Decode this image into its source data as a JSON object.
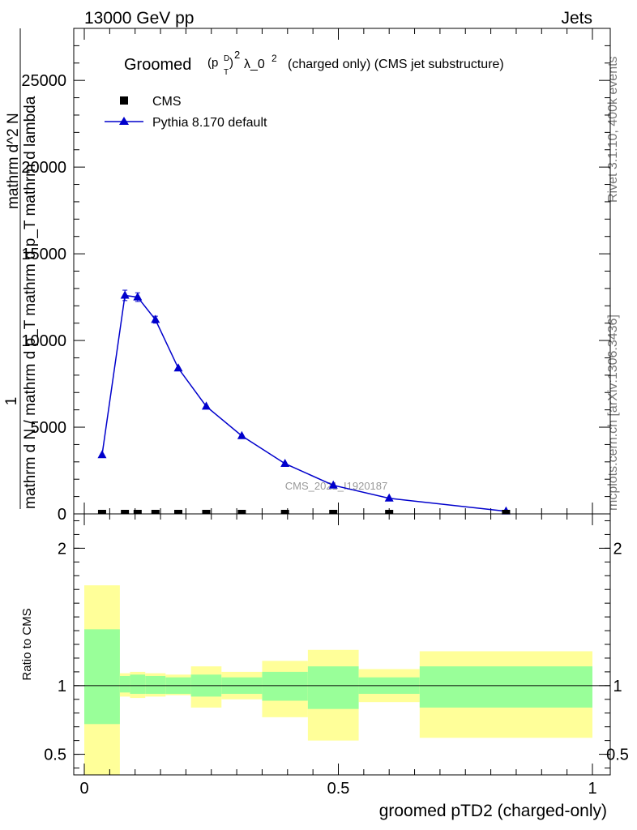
{
  "header": {
    "energy": "13000 GeV pp",
    "category": "Jets",
    "side_top": "Rivet 3.1.10,  400k events",
    "side_bottom": "mcplots.cern.ch [arXiv:1306.3436]",
    "watermark": "CMS_2021_I1920187"
  },
  "chart_data": [
    {
      "type": "line",
      "title_main": "Groomed",
      "title_pt": "(p",
      "title_pt_sub": "T",
      "title_pt_sup": "D",
      "title_pt_close": ")",
      "title_sq": "2",
      "title_lambda": "λ_0",
      "title_lambda_sup": "2",
      "title_suffix": "(charged only) (CMS jet substructure)",
      "ylabel_frac_num": "1",
      "ylabel_den": "mathrm d N / mathrm d p_T mathrm d p_T mathrm d lambda",
      "ylabel_num2": "mathrm d^2 N",
      "ylim": [
        0,
        28000
      ],
      "yticks": [
        {
          "value": 0,
          "label": "0"
        },
        {
          "value": 5000,
          "label": "5000"
        },
        {
          "value": 10000,
          "label": "10000"
        },
        {
          "value": 15000,
          "label": "15000"
        },
        {
          "value": 20000,
          "label": "20000"
        },
        {
          "value": 25000,
          "label": "25000"
        }
      ],
      "xlim": [
        0,
        1
      ],
      "legend": [
        {
          "name": "CMS",
          "marker": "square",
          "color": "#000000"
        },
        {
          "name": "Pythia 8.170 default",
          "marker": "triangle",
          "color": "#0000cc"
        }
      ],
      "series": [
        {
          "name": "Pythia 8.170 default",
          "x": [
            0.035,
            0.08,
            0.105,
            0.14,
            0.185,
            0.24,
            0.31,
            0.395,
            0.49,
            0.6,
            0.83
          ],
          "values": [
            3400,
            12600,
            12500,
            11200,
            8400,
            6200,
            4500,
            2900,
            1650,
            900,
            150
          ],
          "errors": [
            0,
            300,
            250,
            200,
            0,
            0,
            0,
            0,
            0,
            0,
            0
          ]
        },
        {
          "name": "CMS",
          "x": [
            0.035,
            0.08,
            0.105,
            0.14,
            0.185,
            0.24,
            0.31,
            0.395,
            0.49,
            0.6,
            0.83
          ],
          "values": [
            0,
            0,
            0,
            0,
            0,
            0,
            0,
            0,
            0,
            0,
            0
          ]
        }
      ]
    },
    {
      "type": "area",
      "ylabel": "Ratio to CMS",
      "xlabel": "groomed pTD2 (charged-only)",
      "ylim": [
        0.35,
        2.25
      ],
      "reference": 1.0,
      "yticks": [
        {
          "value": 0.5,
          "label": "0.5"
        },
        {
          "value": 1,
          "label": "1"
        },
        {
          "value": 2,
          "label": "2"
        }
      ],
      "xticks": [
        {
          "value": 0,
          "label": "0"
        },
        {
          "value": 0.5,
          "label": "0.5"
        },
        {
          "value": 1,
          "label": "1"
        }
      ],
      "bins": [
        {
          "lo": 0.0,
          "hi": 0.07,
          "green": [
            0.72,
            1.41
          ],
          "yellow": [
            0.35,
            1.73
          ]
        },
        {
          "lo": 0.07,
          "hi": 0.09,
          "green": [
            0.95,
            1.07
          ],
          "yellow": [
            0.92,
            1.09
          ]
        },
        {
          "lo": 0.09,
          "hi": 0.12,
          "green": [
            0.94,
            1.08
          ],
          "yellow": [
            0.91,
            1.1
          ]
        },
        {
          "lo": 0.12,
          "hi": 0.16,
          "green": [
            0.94,
            1.07
          ],
          "yellow": [
            0.92,
            1.09
          ]
        },
        {
          "lo": 0.16,
          "hi": 0.21,
          "green": [
            0.94,
            1.06
          ],
          "yellow": [
            0.93,
            1.08
          ]
        },
        {
          "lo": 0.21,
          "hi": 0.27,
          "green": [
            0.92,
            1.08
          ],
          "yellow": [
            0.84,
            1.14
          ]
        },
        {
          "lo": 0.27,
          "hi": 0.35,
          "green": [
            0.94,
            1.06
          ],
          "yellow": [
            0.9,
            1.1
          ]
        },
        {
          "lo": 0.35,
          "hi": 0.44,
          "green": [
            0.89,
            1.1
          ],
          "yellow": [
            0.77,
            1.18
          ]
        },
        {
          "lo": 0.44,
          "hi": 0.54,
          "green": [
            0.83,
            1.14
          ],
          "yellow": [
            0.6,
            1.26
          ]
        },
        {
          "lo": 0.54,
          "hi": 0.66,
          "green": [
            0.94,
            1.06
          ],
          "yellow": [
            0.88,
            1.12
          ]
        },
        {
          "lo": 0.66,
          "hi": 1.0,
          "green": [
            0.84,
            1.14
          ],
          "yellow": [
            0.62,
            1.25
          ]
        }
      ]
    }
  ]
}
